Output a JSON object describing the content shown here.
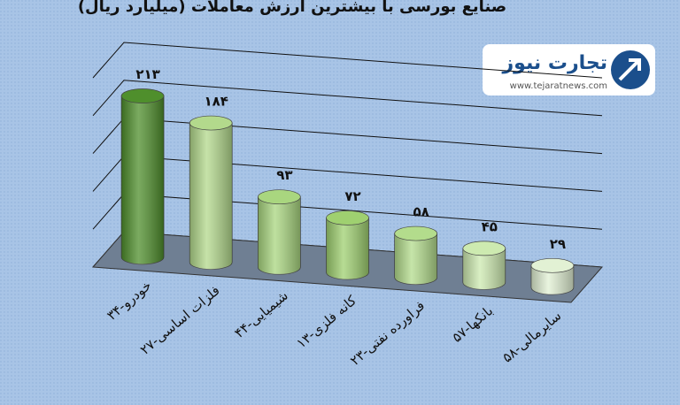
{
  "chart_data": {
    "type": "bar3d",
    "title": "صنایع بورسی با بیشترین ارزش معاملات (میلیارد ریال)",
    "categories": [
      "۳۴-خودرو",
      "۲۷-فلزات اساسی",
      "۴۴-شیمیایی",
      "۱۳-کانه فلزی",
      "۲۳-فراورده نفتی",
      "۵۷-بانکها",
      "۵۸-سایرمالی"
    ],
    "values": [
      213,
      184,
      93,
      72,
      58,
      45,
      29
    ],
    "value_labels": [
      "۲۱۳",
      "۱۸۴",
      "۹۳",
      "۷۲",
      "۵۸",
      "۴۵",
      "۲۹"
    ],
    "colors": [
      "#4f8f2c",
      "#b3d98c",
      "#a9d67f",
      "#9fd070",
      "#b3dc8c",
      "#cdeab0",
      "#e2f1d4"
    ],
    "ylim": [
      0,
      250
    ],
    "yticks": [
      0,
      50,
      100,
      150,
      200,
      250
    ],
    "grid": true
  },
  "logo": {
    "name": "تجارت نیوز",
    "url": "www.tejaratnews.com"
  }
}
